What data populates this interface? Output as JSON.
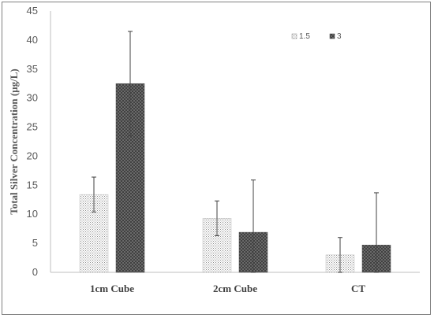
{
  "chart_data": {
    "type": "bar",
    "title": "",
    "xlabel": "",
    "ylabel": "Total Silver Concentration (µg/L)",
    "ylim": [
      0,
      45
    ],
    "yticks": [
      0,
      5,
      10,
      15,
      20,
      25,
      30,
      35,
      40,
      45
    ],
    "grid": false,
    "legend_position": "top-right",
    "categories": [
      "1cm Cube",
      "2cm Cube",
      "CT"
    ],
    "series": [
      {
        "name": "1.5",
        "pattern": "light-dots",
        "color": "#9a9a9a",
        "values": [
          13.4,
          9.3,
          3.0
        ],
        "error": [
          3.0,
          3.0,
          3.0
        ]
      },
      {
        "name": "3",
        "pattern": "dark-crosshatch",
        "color": "#5a5a5a",
        "values": [
          32.5,
          6.9,
          4.7
        ],
        "error": [
          9.0,
          9.0,
          9.0
        ]
      }
    ]
  }
}
